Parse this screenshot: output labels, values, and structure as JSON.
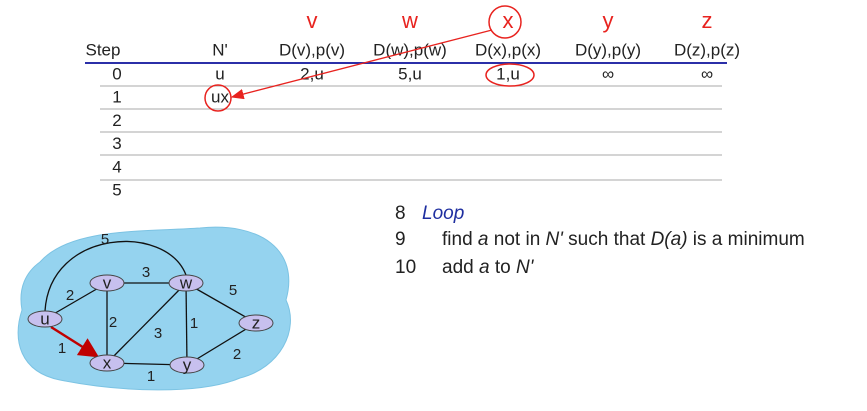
{
  "table": {
    "node_headers": [
      "v",
      "w",
      "x",
      "y",
      "z"
    ],
    "columns": [
      "Step",
      "N'",
      "D(v),p(v)",
      "D(w),p(w)",
      "D(x),p(x)",
      "D(y),p(y)",
      "D(z),p(z)"
    ],
    "rows": [
      [
        "0",
        "u",
        "2,u",
        "5,u",
        "1,u",
        "∞",
        "∞"
      ],
      [
        "1",
        "ux"
      ],
      [
        "2"
      ],
      [
        "3"
      ],
      [
        "4"
      ],
      [
        "5"
      ]
    ]
  },
  "graph": {
    "nodes": [
      {
        "label": "u"
      },
      {
        "label": "v"
      },
      {
        "label": "w"
      },
      {
        "label": "x"
      },
      {
        "label": "y"
      },
      {
        "label": "z"
      }
    ],
    "edges": [
      {
        "weight": "5"
      },
      {
        "weight": "2"
      },
      {
        "weight": "1"
      },
      {
        "weight": "3"
      },
      {
        "weight": "2"
      },
      {
        "weight": "3"
      },
      {
        "weight": "1"
      },
      {
        "weight": "1"
      },
      {
        "weight": "5"
      },
      {
        "weight": "2"
      }
    ]
  },
  "code": [
    {
      "line": "8",
      "parts": [
        "Loop"
      ]
    },
    {
      "line": "9",
      "parts": [
        "find ",
        "a",
        " not in ",
        "N'",
        " such that ",
        "D(a)",
        " is a minimum"
      ]
    },
    {
      "line": "10",
      "parts": [
        "add ",
        "a",
        " to ",
        "N'"
      ]
    }
  ]
}
